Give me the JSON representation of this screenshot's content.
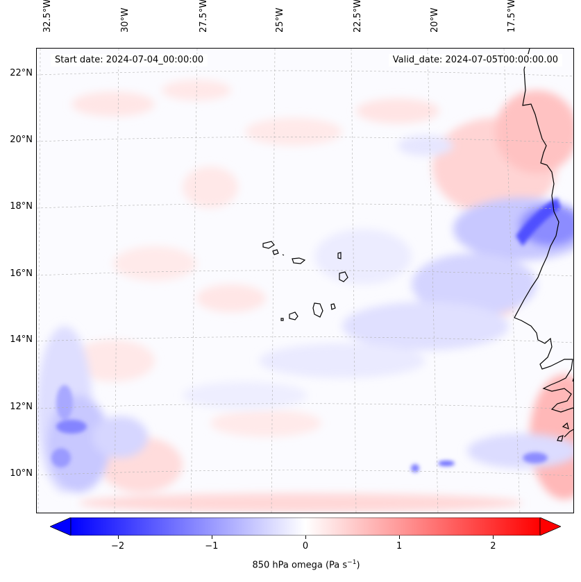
{
  "map": {
    "start_date": "Start date: 2024-07-04_00:00:00",
    "valid_date": "Valid_date: 2024-07-05T00:00:00.00",
    "lon_labels": [
      "32.5°W",
      "30°W",
      "27.5°W",
      "25°W",
      "22.5°W",
      "20°W",
      "17.5°W"
    ],
    "lat_labels": [
      "22°N",
      "20°N",
      "18°N",
      "16°N",
      "14°N",
      "12°N",
      "10°N"
    ],
    "extent": {
      "lon_min": -32.8,
      "lon_max": -15.6,
      "lat_min": 8.9,
      "lat_max": 22.8
    },
    "coastline_color": "#000000",
    "gridline_color": "#b0b0b0"
  },
  "colorbar": {
    "label_main": "850 hPa omega (Pa s",
    "label_sup": "−1",
    "label_end": ")",
    "ticks": [
      "−2",
      "−1",
      "0",
      "1",
      "2"
    ],
    "tick_values": [
      -2,
      -1,
      0,
      1,
      2
    ],
    "vmin": -2.5,
    "vmax": 2.5,
    "extend": "both",
    "cmap": "bwr",
    "negative_color": "#0000ff",
    "zero_color": "#ffffff",
    "positive_color": "#ff0000"
  }
}
